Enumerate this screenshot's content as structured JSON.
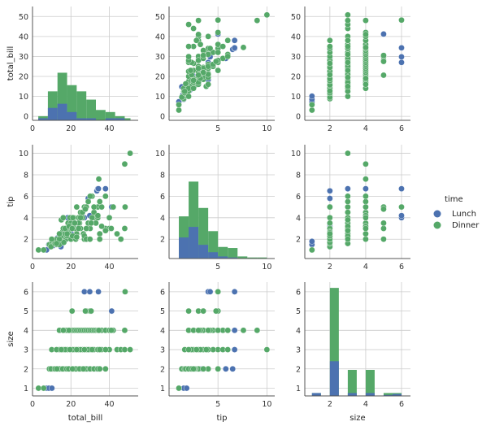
{
  "chart_data": {
    "type": "pairplot",
    "variables": [
      "total_bill",
      "tip",
      "size"
    ],
    "hue": "time",
    "legend": {
      "title": "time",
      "placement": "right",
      "entries": [
        {
          "name": "Lunch",
          "color": "#4c72b0"
        },
        {
          "name": "Dinner",
          "color": "#55a868"
        }
      ]
    },
    "colors": {
      "Lunch": "#4c72b0",
      "Dinner": "#55a868",
      "grid": "#cccccc",
      "spine": "#555555"
    },
    "grid": true,
    "axes": {
      "total_bill": {
        "lim": [
          0,
          55
        ],
        "ticks": [
          0,
          20,
          40
        ],
        "tick_labels": [
          "0",
          "20",
          "40"
        ],
        "label": "total_bill"
      },
      "tip": {
        "lim": [
          0,
          10.8
        ],
        "ticks": [
          5,
          10
        ],
        "tick_labels": [
          "5",
          "10"
        ],
        "label": "tip"
      },
      "tip_y": {
        "ticks": [
          2,
          4,
          6,
          8,
          10
        ],
        "tick_labels": [
          "2",
          "4",
          "6",
          "8",
          "10"
        ]
      },
      "size": {
        "lim": [
          0.6,
          6.5
        ],
        "ticks": [
          2,
          4,
          6
        ],
        "tick_labels": [
          "2",
          "4",
          "6"
        ],
        "label": "size"
      },
      "size_y": {
        "ticks": [
          1,
          2,
          3,
          4,
          5,
          6
        ],
        "tick_labels": [
          "1",
          "2",
          "3",
          "4",
          "5",
          "6"
        ]
      },
      "hist_total_bill_y": {
        "ticks": [
          0,
          10,
          20,
          30,
          40,
          50
        ],
        "tick_labels": [
          "0",
          "10",
          "20",
          "30",
          "40",
          "50"
        ]
      },
      "hist_size_y": {
        "lim": [
          0.6,
          6.5
        ]
      }
    },
    "histograms": {
      "total_bill": {
        "bin_edges": [
          3,
          8,
          13,
          18,
          23,
          28,
          33,
          38,
          43,
          48,
          51
        ],
        "Lunch": [
          1,
          6,
          8,
          4,
          1,
          1,
          0,
          1,
          1,
          0
        ],
        "Dinner_stacked_top": [
          2,
          14,
          23,
          17,
          14,
          10,
          5,
          4,
          2,
          1
        ]
      },
      "tip": {
        "bin_edges": [
          1,
          2,
          3,
          4,
          5,
          6,
          7,
          8,
          9,
          10
        ],
        "Lunch": [
          2.0,
          3.0,
          1.3,
          0.6,
          0.2,
          0.1,
          0,
          0,
          0
        ],
        "Dinner_stacked_top": [
          4.0,
          7.3,
          4.8,
          2.6,
          1.1,
          1.0,
          0.2,
          0.1,
          0.1
        ]
      },
      "size": {
        "bin_edges": [
          1,
          1.5,
          2,
          2.5,
          3,
          3.5,
          4,
          4.5,
          5,
          5.5,
          6
        ],
        "Lunch": [
          0.75,
          0,
          2.4,
          0,
          0.75,
          0,
          0.75,
          0,
          0.65,
          0.7
        ],
        "Dinner_stacked_top": [
          0.75,
          0,
          6.2,
          0,
          1.95,
          0,
          1.95,
          0,
          0.75,
          0.75
        ]
      }
    },
    "records": [
      [
        3.1,
        1.0,
        1,
        "Dinner"
      ],
      [
        7.3,
        1.0,
        1,
        "Lunch"
      ],
      [
        8.5,
        1.5,
        1,
        "Lunch"
      ],
      [
        10.1,
        1.8,
        1,
        "Lunch"
      ],
      [
        5.8,
        1.0,
        1,
        "Dinner"
      ],
      [
        8.8,
        1.5,
        2,
        "Dinner"
      ],
      [
        10.3,
        1.7,
        2,
        "Dinner"
      ],
      [
        11.2,
        1.8,
        2,
        "Dinner"
      ],
      [
        12.4,
        1.5,
        2,
        "Dinner"
      ],
      [
        13.0,
        2.0,
        2,
        "Dinner"
      ],
      [
        13.8,
        2.0,
        2,
        "Dinner"
      ],
      [
        14.5,
        2.2,
        2,
        "Dinner"
      ],
      [
        15.0,
        2.5,
        2,
        "Dinner"
      ],
      [
        15.5,
        2.0,
        2,
        "Dinner"
      ],
      [
        16.0,
        2.3,
        2,
        "Dinner"
      ],
      [
        16.5,
        3.0,
        2,
        "Dinner"
      ],
      [
        17.0,
        2.5,
        2,
        "Dinner"
      ],
      [
        17.5,
        2.0,
        2,
        "Dinner"
      ],
      [
        18.0,
        3.0,
        2,
        "Dinner"
      ],
      [
        18.5,
        3.5,
        2,
        "Dinner"
      ],
      [
        19.0,
        2.5,
        2,
        "Dinner"
      ],
      [
        19.5,
        3.0,
        2,
        "Dinner"
      ],
      [
        20.0,
        2.0,
        2,
        "Dinner"
      ],
      [
        20.5,
        3.5,
        2,
        "Dinner"
      ],
      [
        21.0,
        3.0,
        2,
        "Dinner"
      ],
      [
        21.5,
        4.0,
        2,
        "Dinner"
      ],
      [
        22.0,
        3.0,
        2,
        "Dinner"
      ],
      [
        23.0,
        2.5,
        2,
        "Dinner"
      ],
      [
        24.0,
        4.0,
        2,
        "Dinner"
      ],
      [
        25.0,
        3.0,
        2,
        "Dinner"
      ],
      [
        26.0,
        4.0,
        2,
        "Dinner"
      ],
      [
        27.0,
        2.0,
        2,
        "Dinner"
      ],
      [
        28.0,
        5.0,
        2,
        "Dinner"
      ],
      [
        30.0,
        3.0,
        2,
        "Dinner"
      ],
      [
        32.0,
        4.0,
        2,
        "Dinner"
      ],
      [
        34.0,
        5.0,
        2,
        "Dinner"
      ],
      [
        35.0,
        2.5,
        2,
        "Dinner"
      ],
      [
        38.0,
        3.0,
        2,
        "Dinner"
      ],
      [
        14.0,
        1.5,
        2,
        "Dinner"
      ],
      [
        9.6,
        1.3,
        2,
        "Dinner"
      ],
      [
        11.7,
        1.6,
        2,
        "Dinner"
      ],
      [
        16.3,
        1.7,
        2,
        "Dinner"
      ],
      [
        12.7,
        2.0,
        2,
        "Dinner"
      ],
      [
        15.7,
        2.7,
        2,
        "Dinner"
      ],
      [
        17.8,
        2.3,
        2,
        "Dinner"
      ],
      [
        22.5,
        2.0,
        2,
        "Dinner"
      ],
      [
        18.8,
        2.6,
        2,
        "Dinner"
      ],
      [
        20.8,
        2.3,
        2,
        "Dinner"
      ],
      [
        24.5,
        3.5,
        2,
        "Dinner"
      ],
      [
        26.5,
        2.5,
        2,
        "Dinner"
      ],
      [
        13.4,
        1.6,
        2,
        "Lunch"
      ],
      [
        15.2,
        2.0,
        2,
        "Lunch"
      ],
      [
        16.8,
        2.5,
        2,
        "Lunch"
      ],
      [
        12.0,
        1.9,
        2,
        "Lunch"
      ],
      [
        17.9,
        2.9,
        2,
        "Lunch"
      ],
      [
        19.7,
        3.2,
        2,
        "Lunch"
      ],
      [
        14.8,
        1.3,
        2,
        "Lunch"
      ],
      [
        20.2,
        2.5,
        2,
        "Lunch"
      ],
      [
        18.3,
        4.0,
        2,
        "Lunch"
      ],
      [
        14.2,
        2.2,
        2,
        "Lunch"
      ],
      [
        15.8,
        2.4,
        2,
        "Lunch"
      ],
      [
        22.7,
        2.1,
        2,
        "Lunch"
      ],
      [
        10.7,
        1.4,
        2,
        "Lunch"
      ],
      [
        12.9,
        2.1,
        2,
        "Lunch"
      ],
      [
        21.7,
        3.4,
        2,
        "Lunch"
      ],
      [
        13.3,
        1.7,
        2,
        "Lunch"
      ],
      [
        33.5,
        6.5,
        2,
        "Lunch"
      ],
      [
        27.0,
        5.0,
        2,
        "Lunch"
      ],
      [
        29.0,
        5.8,
        2,
        "Lunch"
      ],
      [
        28.4,
        3.0,
        2,
        "Lunch"
      ],
      [
        10.0,
        2.0,
        3,
        "Dinner"
      ],
      [
        14.0,
        2.0,
        3,
        "Dinner"
      ],
      [
        16.0,
        3.0,
        3,
        "Dinner"
      ],
      [
        18.0,
        3.0,
        3,
        "Dinner"
      ],
      [
        20.0,
        3.5,
        3,
        "Dinner"
      ],
      [
        22.0,
        3.0,
        3,
        "Dinner"
      ],
      [
        24.0,
        3.5,
        3,
        "Dinner"
      ],
      [
        26.0,
        4.0,
        3,
        "Dinner"
      ],
      [
        28.0,
        3.0,
        3,
        "Dinner"
      ],
      [
        30.0,
        3.5,
        3,
        "Dinner"
      ],
      [
        32.0,
        4.5,
        3,
        "Dinner"
      ],
      [
        34.0,
        4.0,
        3,
        "Dinner"
      ],
      [
        36.0,
        5.0,
        3,
        "Dinner"
      ],
      [
        40.0,
        3.0,
        3,
        "Dinner"
      ],
      [
        44.0,
        2.5,
        3,
        "Dinner"
      ],
      [
        46.0,
        2.0,
        3,
        "Dinner"
      ],
      [
        48.0,
        3.0,
        3,
        "Dinner"
      ],
      [
        50.8,
        10.0,
        3,
        "Dinner"
      ],
      [
        17.0,
        2.5,
        3,
        "Dinner"
      ],
      [
        21.0,
        3.2,
        3,
        "Dinner"
      ],
      [
        25.0,
        4.5,
        3,
        "Dinner"
      ],
      [
        29.0,
        5.5,
        3,
        "Dinner"
      ],
      [
        12.5,
        1.6,
        3,
        "Dinner"
      ],
      [
        23.0,
        2.2,
        3,
        "Dinner"
      ],
      [
        19.5,
        4.0,
        3,
        "Dinner"
      ],
      [
        27.0,
        2.3,
        3,
        "Dinner"
      ],
      [
        31.0,
        6.0,
        3,
        "Dinner"
      ],
      [
        15.0,
        3.8,
        3,
        "Dinner"
      ],
      [
        35.0,
        2.0,
        3,
        "Dinner"
      ],
      [
        38.0,
        2.8,
        3,
        "Dinner"
      ],
      [
        32.0,
        4.0,
        3,
        "Lunch"
      ],
      [
        34.0,
        6.7,
        3,
        "Lunch"
      ],
      [
        24.0,
        3.0,
        3,
        "Lunch"
      ],
      [
        14.0,
        2.5,
        4,
        "Dinner"
      ],
      [
        17.0,
        3.0,
        4,
        "Dinner"
      ],
      [
        20.0,
        3.0,
        4,
        "Dinner"
      ],
      [
        21.0,
        4.0,
        4,
        "Dinner"
      ],
      [
        22.0,
        3.5,
        4,
        "Dinner"
      ],
      [
        23.0,
        5.0,
        4,
        "Dinner"
      ],
      [
        24.0,
        3.0,
        4,
        "Dinner"
      ],
      [
        25.0,
        4.0,
        4,
        "Dinner"
      ],
      [
        26.0,
        4.5,
        4,
        "Dinner"
      ],
      [
        27.0,
        5.0,
        4,
        "Dinner"
      ],
      [
        28.0,
        2.0,
        4,
        "Dinner"
      ],
      [
        29.0,
        3.5,
        4,
        "Dinner"
      ],
      [
        30.0,
        6.0,
        4,
        "Dinner"
      ],
      [
        31.0,
        4.0,
        4,
        "Dinner"
      ],
      [
        32.0,
        5.0,
        4,
        "Dinner"
      ],
      [
        33.0,
        3.5,
        4,
        "Dinner"
      ],
      [
        34.0,
        4.2,
        4,
        "Dinner"
      ],
      [
        35.0,
        5.5,
        4,
        "Dinner"
      ],
      [
        36.0,
        3.2,
        4,
        "Dinner"
      ],
      [
        38.0,
        6.0,
        4,
        "Dinner"
      ],
      [
        40.0,
        4.0,
        4,
        "Dinner"
      ],
      [
        42.0,
        5.0,
        4,
        "Dinner"
      ],
      [
        48.0,
        9.0,
        4,
        "Dinner"
      ],
      [
        18.0,
        2.5,
        4,
        "Dinner"
      ],
      [
        19.0,
        3.2,
        4,
        "Dinner"
      ],
      [
        16.0,
        4.0,
        4,
        "Dinner"
      ],
      [
        34.5,
        7.6,
        4,
        "Dinner"
      ],
      [
        41.0,
        3.0,
        4,
        "Dinner"
      ],
      [
        34.0,
        5.0,
        4,
        "Lunch"
      ],
      [
        42.0,
        5.0,
        4,
        "Lunch"
      ],
      [
        38.0,
        6.7,
        4,
        "Lunch"
      ],
      [
        28.0,
        5.0,
        5,
        "Dinner"
      ],
      [
        20.6,
        3.0,
        5,
        "Dinner"
      ],
      [
        29.9,
        2.0,
        5,
        "Dinner"
      ],
      [
        30.5,
        3.5,
        5,
        "Dinner"
      ],
      [
        27.5,
        4.8,
        5,
        "Dinner"
      ],
      [
        41.2,
        5.0,
        5,
        "Lunch"
      ],
      [
        48.2,
        5.0,
        6,
        "Dinner"
      ],
      [
        27.0,
        4.0,
        6,
        "Lunch"
      ],
      [
        29.8,
        4.2,
        6,
        "Lunch"
      ],
      [
        34.3,
        6.7,
        6,
        "Lunch"
      ]
    ]
  }
}
